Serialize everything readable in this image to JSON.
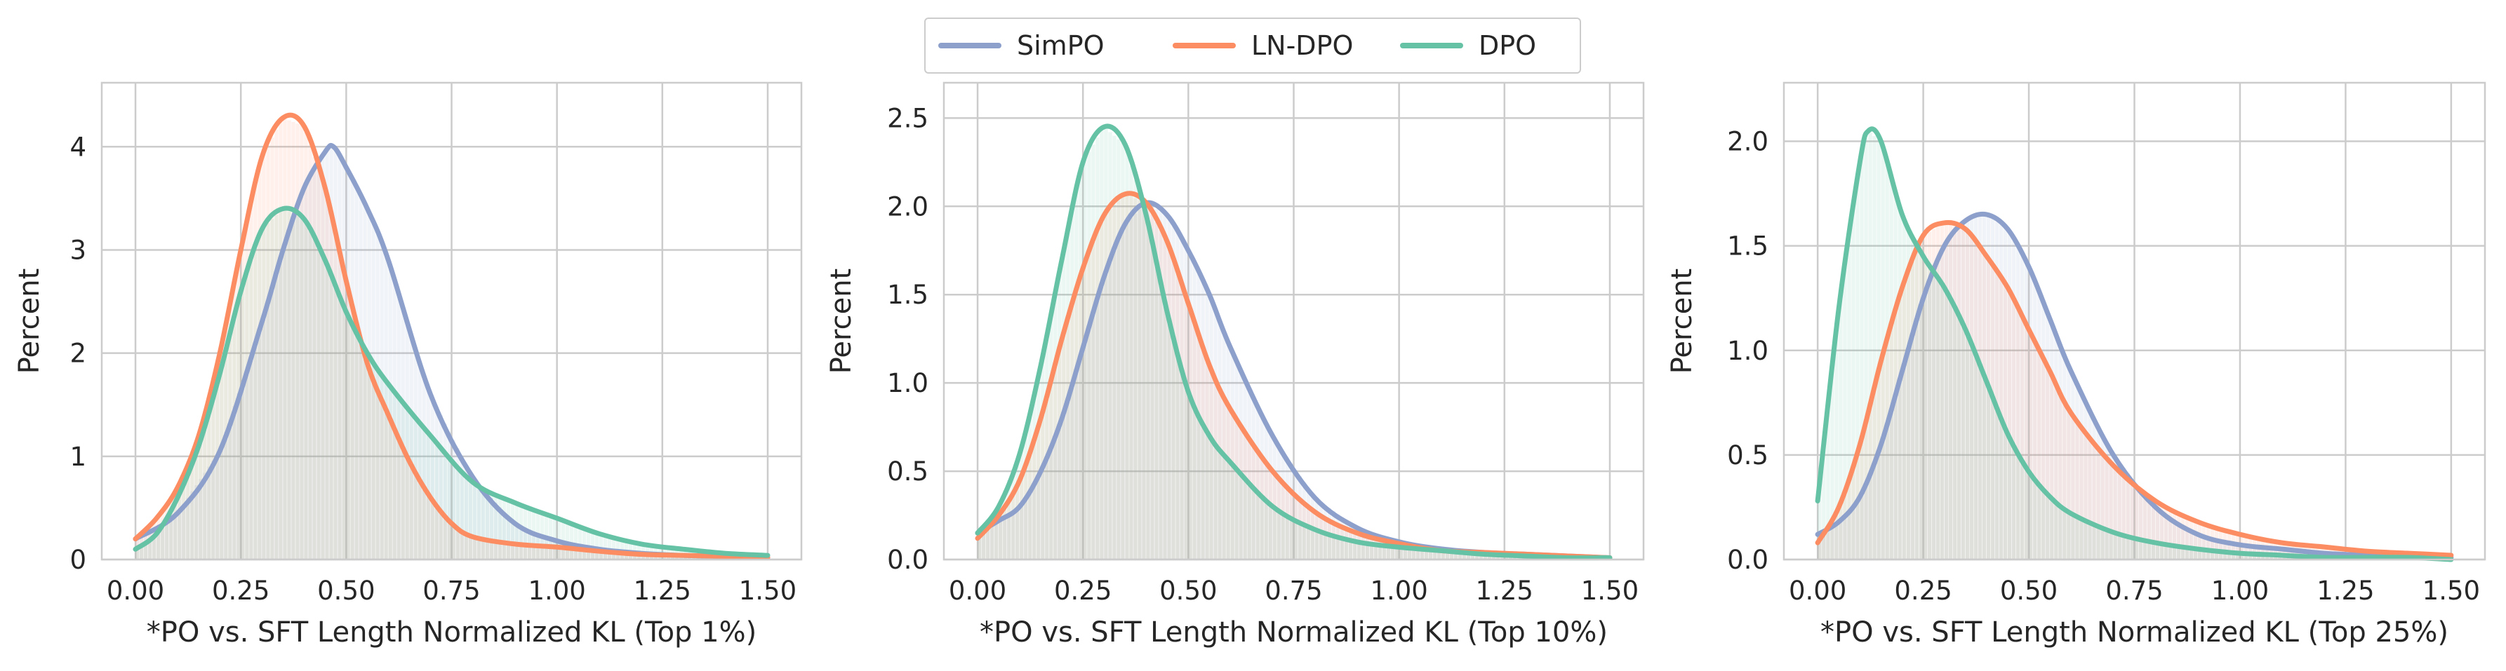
{
  "legend": [
    {
      "name": "SimPO",
      "color": "#8da0cb"
    },
    {
      "name": "LN-DPO",
      "color": "#fc8d62"
    },
    {
      "name": "DPO",
      "color": "#66c2a5"
    }
  ],
  "chart_data": [
    {
      "type": "line",
      "subtype": "histogram-kde",
      "xlabel": "*PO vs. SFT Length Normalized KL (Top 1%)",
      "ylabel": "Percent",
      "xlim": [
        -0.08,
        1.58
      ],
      "ylim": [
        0,
        4.62
      ],
      "xticks": [
        "0.00",
        "0.25",
        "0.50",
        "0.75",
        "1.00",
        "1.25",
        "1.50"
      ],
      "xtick_values": [
        0,
        0.25,
        0.5,
        0.75,
        1.0,
        1.25,
        1.5
      ],
      "yticks": [
        "0",
        "1",
        "2",
        "3",
        "4"
      ],
      "ytick_values": [
        0,
        1,
        2,
        3,
        4
      ],
      "grid": true,
      "series": [
        {
          "name": "SimPO",
          "x": [
            0.0,
            0.1,
            0.2,
            0.3,
            0.35,
            0.4,
            0.45,
            0.47,
            0.5,
            0.55,
            0.6,
            0.7,
            0.8,
            0.9,
            1.0,
            1.1,
            1.2,
            1.3,
            1.4,
            1.5
          ],
          "y": [
            0.2,
            0.45,
            1.05,
            2.3,
            3.0,
            3.6,
            3.95,
            4.0,
            3.8,
            3.4,
            2.9,
            1.6,
            0.8,
            0.35,
            0.18,
            0.1,
            0.06,
            0.04,
            0.03,
            0.02
          ]
        },
        {
          "name": "LN-DPO",
          "x": [
            0.0,
            0.05,
            0.1,
            0.15,
            0.2,
            0.25,
            0.3,
            0.35,
            0.4,
            0.45,
            0.5,
            0.55,
            0.6,
            0.65,
            0.7,
            0.75,
            0.8,
            0.9,
            1.0,
            1.1,
            1.2,
            1.3,
            1.4,
            1.5
          ],
          "y": [
            0.2,
            0.4,
            0.7,
            1.2,
            2.0,
            3.0,
            3.9,
            4.28,
            4.2,
            3.6,
            2.7,
            1.9,
            1.4,
            0.95,
            0.6,
            0.35,
            0.22,
            0.15,
            0.12,
            0.08,
            0.05,
            0.04,
            0.03,
            0.02
          ]
        },
        {
          "name": "DPO",
          "x": [
            0.0,
            0.05,
            0.1,
            0.15,
            0.2,
            0.25,
            0.3,
            0.35,
            0.4,
            0.45,
            0.5,
            0.55,
            0.6,
            0.7,
            0.8,
            0.9,
            1.0,
            1.1,
            1.2,
            1.3,
            1.4,
            1.5
          ],
          "y": [
            0.1,
            0.25,
            0.6,
            1.1,
            1.8,
            2.6,
            3.2,
            3.4,
            3.3,
            2.9,
            2.4,
            2.0,
            1.7,
            1.2,
            0.75,
            0.55,
            0.4,
            0.25,
            0.15,
            0.1,
            0.06,
            0.04
          ]
        }
      ]
    },
    {
      "type": "line",
      "subtype": "histogram-kde",
      "xlabel": "*PO vs. SFT Length Normalized KL (Top 10%)",
      "ylabel": "Percent",
      "xlim": [
        -0.08,
        1.58
      ],
      "ylim": [
        0,
        2.7
      ],
      "xticks": [
        "0.00",
        "0.25",
        "0.50",
        "0.75",
        "1.00",
        "1.25",
        "1.50"
      ],
      "xtick_values": [
        0,
        0.25,
        0.5,
        0.75,
        1.0,
        1.25,
        1.5
      ],
      "yticks": [
        "0.0",
        "0.5",
        "1.0",
        "1.5",
        "2.0",
        "2.5"
      ],
      "ytick_values": [
        0,
        0.5,
        1.0,
        1.5,
        2.0,
        2.5
      ],
      "grid": true,
      "series": [
        {
          "name": "SimPO",
          "x": [
            0.0,
            0.05,
            0.1,
            0.15,
            0.2,
            0.25,
            0.3,
            0.35,
            0.4,
            0.45,
            0.5,
            0.55,
            0.6,
            0.7,
            0.8,
            0.9,
            1.0,
            1.1,
            1.2,
            1.3,
            1.4,
            1.5
          ],
          "y": [
            0.15,
            0.22,
            0.3,
            0.5,
            0.8,
            1.2,
            1.6,
            1.9,
            2.02,
            1.95,
            1.75,
            1.5,
            1.2,
            0.7,
            0.35,
            0.18,
            0.1,
            0.06,
            0.04,
            0.03,
            0.02,
            0.01
          ]
        },
        {
          "name": "LN-DPO",
          "x": [
            0.0,
            0.05,
            0.1,
            0.15,
            0.2,
            0.25,
            0.3,
            0.35,
            0.4,
            0.45,
            0.5,
            0.55,
            0.6,
            0.7,
            0.8,
            0.9,
            1.0,
            1.1,
            1.2,
            1.3,
            1.4,
            1.5
          ],
          "y": [
            0.12,
            0.25,
            0.45,
            0.8,
            1.25,
            1.65,
            1.95,
            2.07,
            2.02,
            1.8,
            1.45,
            1.1,
            0.85,
            0.5,
            0.27,
            0.15,
            0.09,
            0.05,
            0.04,
            0.03,
            0.02,
            0.01
          ]
        },
        {
          "name": "DPO",
          "x": [
            0.0,
            0.05,
            0.1,
            0.15,
            0.2,
            0.25,
            0.3,
            0.35,
            0.4,
            0.45,
            0.5,
            0.55,
            0.6,
            0.7,
            0.8,
            0.9,
            1.0,
            1.1,
            1.2,
            1.3,
            1.4,
            1.5
          ],
          "y": [
            0.15,
            0.3,
            0.6,
            1.1,
            1.7,
            2.25,
            2.45,
            2.35,
            1.95,
            1.4,
            0.95,
            0.7,
            0.55,
            0.3,
            0.17,
            0.1,
            0.07,
            0.05,
            0.03,
            0.02,
            0.01,
            0.01
          ]
        }
      ]
    },
    {
      "type": "line",
      "subtype": "histogram-kde",
      "xlabel": "*PO vs. SFT Length Normalized KL (Top 25%)",
      "ylabel": "Percent",
      "xlim": [
        -0.08,
        1.58
      ],
      "ylim": [
        0,
        2.28
      ],
      "xticks": [
        "0.00",
        "0.25",
        "0.50",
        "0.75",
        "1.00",
        "1.25",
        "1.50"
      ],
      "xtick_values": [
        0,
        0.25,
        0.5,
        0.75,
        1.0,
        1.25,
        1.5
      ],
      "yticks": [
        "0.0",
        "0.5",
        "1.0",
        "1.5",
        "2.0"
      ],
      "ytick_values": [
        0,
        0.5,
        1.0,
        1.5,
        2.0
      ],
      "grid": true,
      "series": [
        {
          "name": "SimPO",
          "x": [
            0.0,
            0.05,
            0.1,
            0.15,
            0.2,
            0.25,
            0.3,
            0.35,
            0.4,
            0.45,
            0.5,
            0.55,
            0.6,
            0.7,
            0.8,
            0.9,
            1.0,
            1.1,
            1.2,
            1.3,
            1.4,
            1.5
          ],
          "y": [
            0.12,
            0.18,
            0.3,
            0.55,
            0.9,
            1.25,
            1.5,
            1.62,
            1.65,
            1.58,
            1.4,
            1.15,
            0.9,
            0.5,
            0.25,
            0.12,
            0.07,
            0.05,
            0.03,
            0.02,
            0.01,
            0.01
          ]
        },
        {
          "name": "LN-DPO",
          "x": [
            0.0,
            0.05,
            0.1,
            0.15,
            0.2,
            0.25,
            0.3,
            0.35,
            0.4,
            0.45,
            0.5,
            0.55,
            0.6,
            0.7,
            0.8,
            0.9,
            1.0,
            1.1,
            1.2,
            1.3,
            1.4,
            1.5
          ],
          "y": [
            0.08,
            0.25,
            0.55,
            0.95,
            1.3,
            1.55,
            1.61,
            1.58,
            1.45,
            1.3,
            1.1,
            0.9,
            0.7,
            0.45,
            0.28,
            0.18,
            0.12,
            0.08,
            0.06,
            0.04,
            0.03,
            0.02
          ]
        },
        {
          "name": "DPO",
          "x": [
            0.0,
            0.05,
            0.1,
            0.12,
            0.15,
            0.2,
            0.25,
            0.3,
            0.35,
            0.4,
            0.45,
            0.5,
            0.55,
            0.6,
            0.7,
            0.8,
            0.9,
            1.0,
            1.1,
            1.2,
            1.3,
            1.4,
            1.5
          ],
          "y": [
            0.28,
            1.2,
            1.9,
            2.05,
            2.0,
            1.65,
            1.45,
            1.3,
            1.1,
            0.85,
            0.6,
            0.42,
            0.3,
            0.22,
            0.13,
            0.08,
            0.05,
            0.03,
            0.02,
            0.01,
            0.01,
            0.01,
            0.0
          ]
        }
      ]
    }
  ]
}
